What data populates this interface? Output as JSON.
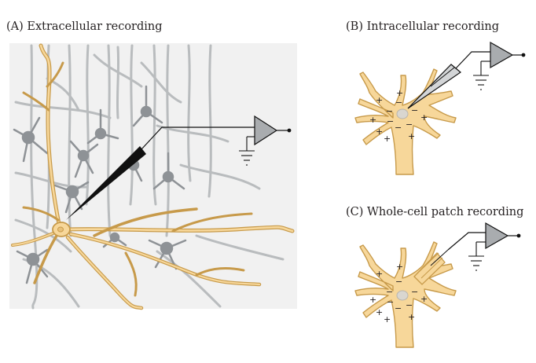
{
  "panels": {
    "a": {
      "label": "(A) Extracellular recording"
    },
    "b": {
      "label": "(B) Intracellular recording"
    },
    "c": {
      "label": "(C) Whole-cell patch recording"
    }
  },
  "signs": {
    "plus": "+",
    "minus": "−"
  },
  "colors": {
    "neuron_fill": "#f7d79a",
    "neuron_stroke": "#c79a4a",
    "tissue_gray": "#b9bcbe",
    "dark_cell": "#8e9296",
    "amplifier_fill": "#a9acaf",
    "electrode": "#111111"
  }
}
